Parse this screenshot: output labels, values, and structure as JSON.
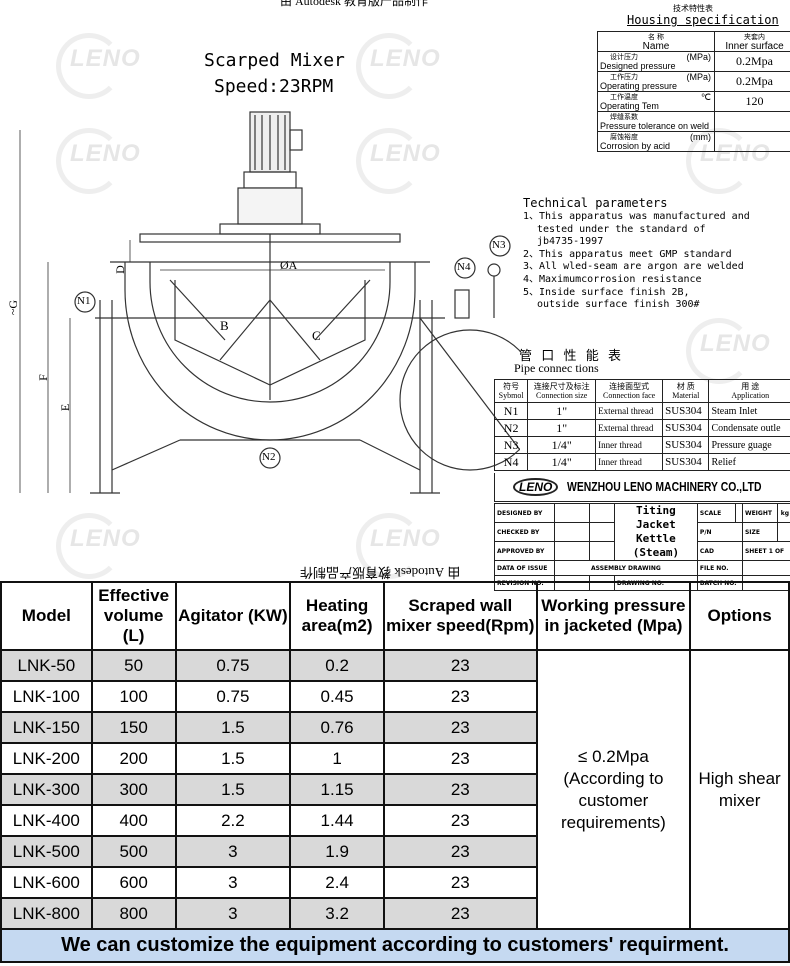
{
  "drawing": {
    "top_note": "由 Autodesk 教育版产品制作",
    "bottom_note": "由 Autodesk 教育版产品制作",
    "watermark": "LENO",
    "mixer_title": "Scarped Mixer",
    "mixer_speed": "Speed:23RPM",
    "labels": {
      "n1": "N1",
      "n2": "N2",
      "n3": "N3",
      "n4": "N4",
      "a": "ØA",
      "b": "B",
      "c": "C",
      "d": "D",
      "e": "E",
      "f": "F",
      "g": "~G"
    },
    "housing": {
      "title_cn": "技术特性表",
      "title": "Housing specification",
      "header": {
        "name_cn": "名 称",
        "name": "Name",
        "inner_cn": "夹套内",
        "inner": "Inner surface"
      },
      "rows": [
        {
          "cn": "设计压力",
          "label": "Designed pressure",
          "unit": "(MPa)",
          "value": "0.2Mpa"
        },
        {
          "cn": "工作压力",
          "label": "Operating pressure",
          "unit": "(MPa)",
          "value": "0.2Mpa"
        },
        {
          "cn": "工作温度",
          "label": "Operating Tem",
          "unit": "℃",
          "value": "120"
        },
        {
          "cn": "焊缝系数",
          "label": "Pressure tolerance on weld",
          "unit": "",
          "value": ""
        },
        {
          "cn": "腐蚀裕度",
          "label": "Corrosion by acid",
          "unit": "(mm)",
          "value": ""
        }
      ]
    },
    "technical": {
      "title": "Technical parameters",
      "items": [
        "1、This apparatus was manufactured and",
        "tested under the standard of",
        "jb4735-1997",
        "2、This apparatus meet GMP standard",
        "3、All wled-seam are argon are welded",
        "4、Maximumcorrosion resistance",
        "5、Inside surface finish 2B,",
        "outside surface finish 300#"
      ]
    },
    "pipes": {
      "title_cn": "管 口 性 能 表",
      "title": "Pipe connec tions",
      "headers": [
        {
          "cn": "符号",
          "en": "Sybmol"
        },
        {
          "cn": "连接尺寸及标注",
          "en": "Connection size"
        },
        {
          "cn": "连接面型式",
          "en": "Connection face"
        },
        {
          "cn": "材 质",
          "en": "Material"
        },
        {
          "cn": "用 途",
          "en": "Application"
        }
      ],
      "rows": [
        [
          "N1",
          "1\"",
          "External thread",
          "SUS304",
          "Steam Inlet"
        ],
        [
          "N2",
          "1\"",
          "External thread",
          "SUS304",
          "Condensate outle"
        ],
        [
          "N3",
          "1/4\"",
          "Inner thread",
          "SUS304",
          "Pressure guage"
        ],
        [
          "N4",
          "1/4\"",
          "Inner thread",
          "SUS304",
          "Relief"
        ]
      ]
    },
    "company": "WENZHOU LENO MACHINERY CO.,LTD",
    "title_block": {
      "designed_by": "DESIGNED BY",
      "checked_by": "CHECKED BY",
      "approved_by": "APPROVED BY",
      "date_of_issue": "DATA OF ISSUE",
      "revision_no": "REVISION NO.",
      "product_line1": "Titing",
      "product_line2": "Jacket Kettle",
      "product_line3": "(Steam)",
      "assembly": "ASSEMBLY DRAWING",
      "drawing_no": "DRAWING NO.",
      "scale": "SCALE",
      "weight": "WEIGHT",
      "kg": "kg",
      "pn": "P/N",
      "size": "SIZE",
      "cad": "CAD",
      "sheet": "SHEET 1  OF",
      "file_no": "FILE NO.",
      "batch_no": "BATCH NO."
    }
  },
  "spec_table": {
    "headers": [
      "Model",
      "Effective volume (L)",
      "Agitator (KW)",
      "Heating area(m2)",
      "Scraped wall mixer speed(Rpm)",
      "Working pressure in jacketed (Mpa)",
      "Options"
    ],
    "rows": [
      [
        "LNK-50",
        "50",
        "0.75",
        "0.2",
        "23"
      ],
      [
        "LNK-100",
        "100",
        "0.75",
        "0.45",
        "23"
      ],
      [
        "LNK-150",
        "150",
        "1.5",
        "0.76",
        "23"
      ],
      [
        "LNK-200",
        "200",
        "1.5",
        "1",
        "23"
      ],
      [
        "LNK-300",
        "300",
        "1.5",
        "1.15",
        "23"
      ],
      [
        "LNK-400",
        "400",
        "2.2",
        "1.44",
        "23"
      ],
      [
        "LNK-500",
        "500",
        "3",
        "1.9",
        "23"
      ],
      [
        "LNK-600",
        "600",
        "3",
        "2.4",
        "23"
      ],
      [
        "LNK-800",
        "800",
        "3",
        "3.2",
        "23"
      ]
    ],
    "pressure": {
      "line1": "≤ 0.2Mpa",
      "line2": "(According to",
      "line3": "customer",
      "line4": "requirements)"
    },
    "options": {
      "line1": "High shear",
      "line2": "mixer"
    },
    "footer": "We can customize the equipment according to customers' requirment.",
    "colors": {
      "shaded_row": "#d9d9d9",
      "footer_bg": "#c5d9f1"
    }
  }
}
